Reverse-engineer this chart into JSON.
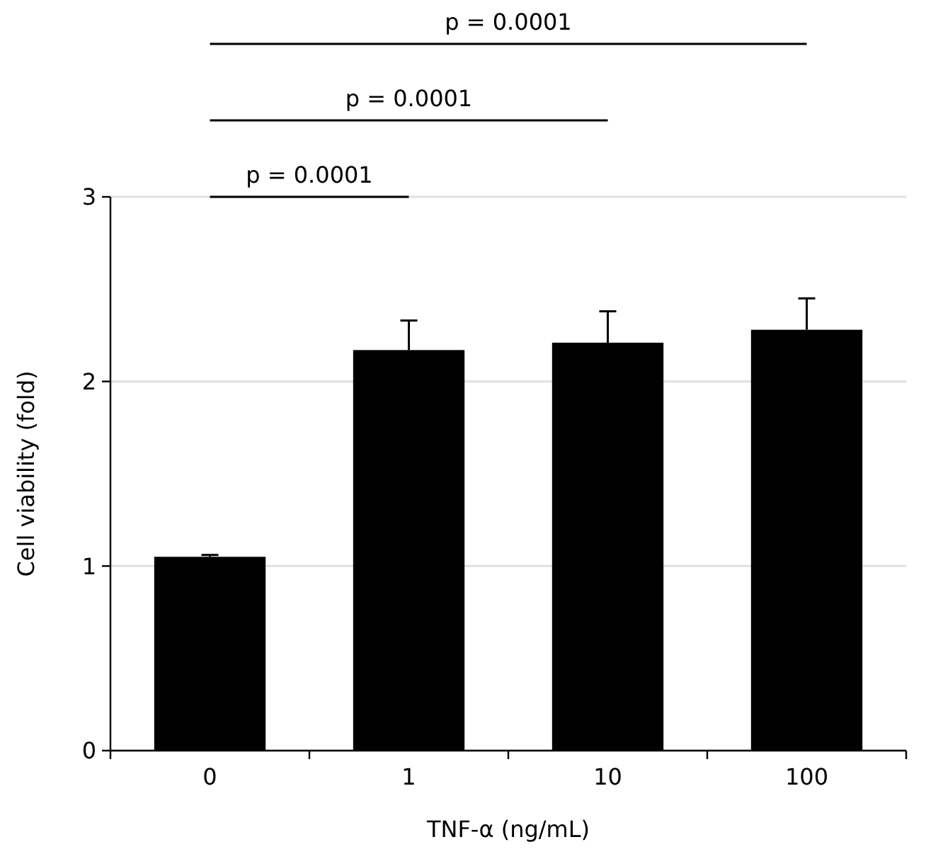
{
  "chart_data": {
    "type": "bar",
    "xlabel": "TNF-α (ng/mL)",
    "ylabel": "Cell viability (fold)",
    "categories": [
      "0",
      "1",
      "10",
      "100"
    ],
    "values": [
      1.05,
      2.17,
      2.21,
      2.28
    ],
    "errors": [
      0.01,
      0.16,
      0.17,
      0.17
    ],
    "color": "#000000",
    "ylim": [
      0,
      3
    ],
    "yticks": [
      0,
      1,
      2,
      3
    ],
    "grid": "y",
    "annotations": [
      "p = 0.0001",
      "p = 0.0001",
      "p = 0.0001"
    ]
  }
}
